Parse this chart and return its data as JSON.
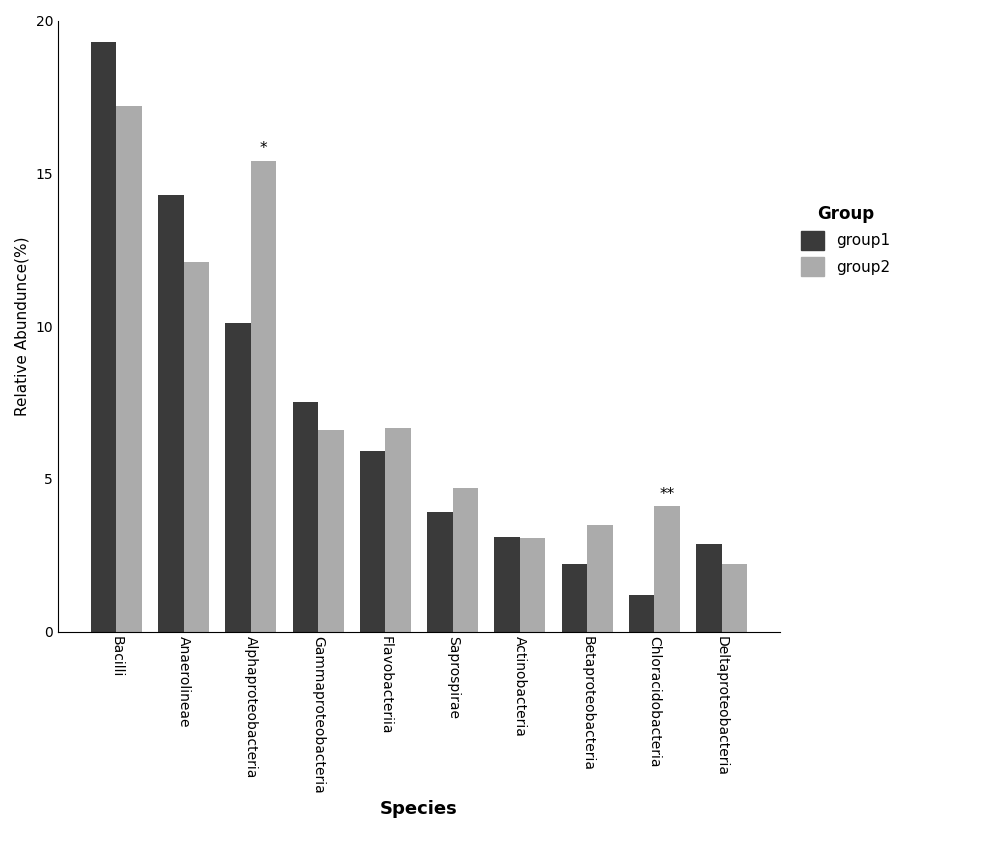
{
  "categories": [
    "Bacilli",
    "Anaerolineae",
    "Alphaproteobacteria",
    "Gammaproteobacteria",
    "Flavobacteriia",
    "Saprospirae",
    "Actinobacteria",
    "Betaproteobacteria",
    "Chloracidobacteria",
    "Deltaproteobacteria"
  ],
  "group1": [
    19.3,
    14.3,
    10.1,
    7.5,
    5.9,
    3.9,
    3.1,
    2.2,
    1.2,
    2.85
  ],
  "group2": [
    17.2,
    12.1,
    15.4,
    6.6,
    6.65,
    4.7,
    3.05,
    3.5,
    4.1,
    2.2
  ],
  "group1_color": "#3a3a3a",
  "group2_color": "#ababab",
  "xlabel": "Species",
  "ylabel": "Relative Abundunce(%)",
  "legend_title": "Group",
  "legend_labels": [
    "group1",
    "group2"
  ],
  "ylim": [
    0,
    20
  ],
  "yticks": [
    0,
    5,
    10,
    15,
    20
  ],
  "bar_width": 0.38,
  "annotations": {
    "Alphaproteobacteria": {
      "text": "*",
      "group": "group2"
    },
    "Chloracidobacteria": {
      "text": "**",
      "group": "group2"
    }
  },
  "background_color": "#ffffff",
  "figsize": [
    10.0,
    8.42
  ],
  "dpi": 100
}
